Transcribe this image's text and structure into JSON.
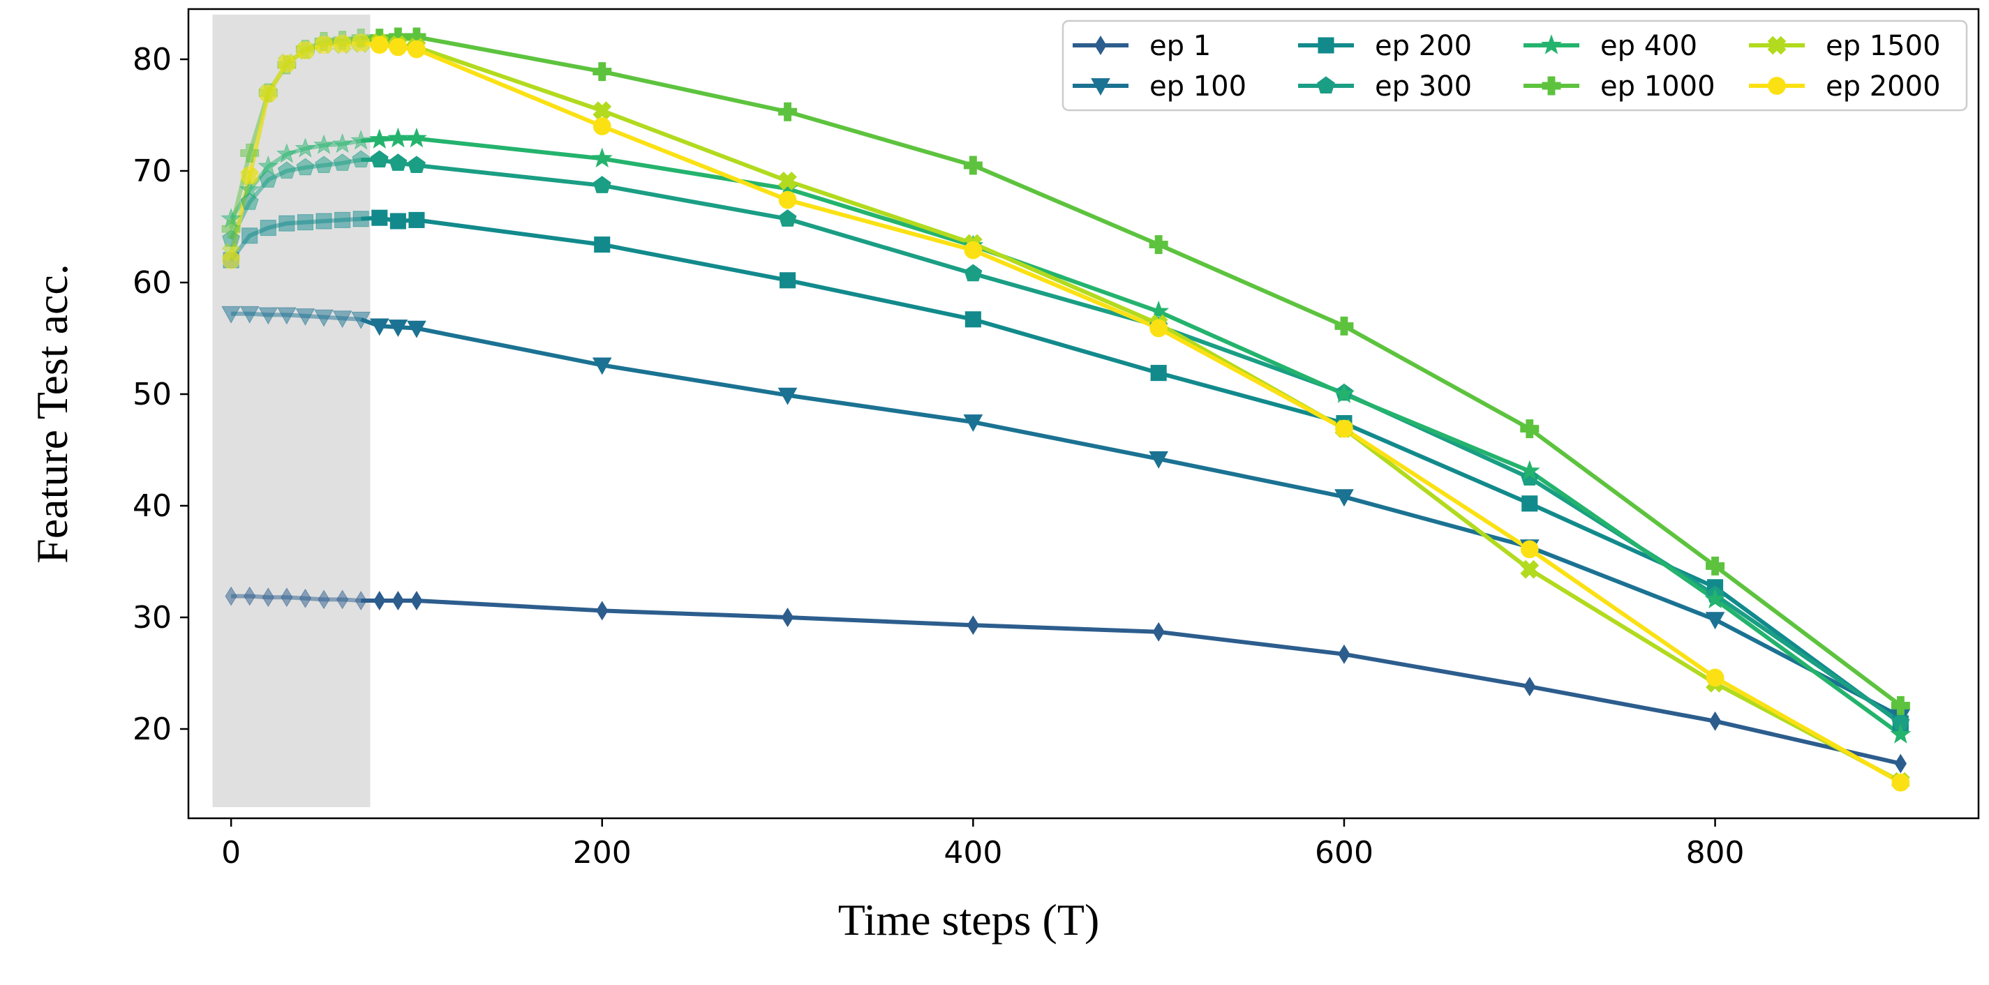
{
  "chart_data": {
    "type": "line",
    "xlabel": "Time steps (T)",
    "ylabel": "Feature Test acc.",
    "xlim": [
      -23,
      942
    ],
    "ylim": [
      12,
      84.5
    ],
    "xticks": [
      0,
      200,
      400,
      600,
      800
    ],
    "yticks": [
      20,
      30,
      40,
      50,
      60,
      70,
      80
    ],
    "grid": false,
    "legend_position": "top-right",
    "legend_columns": 4,
    "highlight_region": {
      "x": [
        -10,
        75
      ],
      "y": [
        13,
        84
      ],
      "color": "#e0e0e0"
    },
    "x": [
      0,
      10,
      20,
      30,
      40,
      50,
      60,
      70,
      80,
      90,
      100,
      200,
      300,
      400,
      500,
      600,
      700,
      800,
      900
    ],
    "series": [
      {
        "name": "ep 1",
        "color": "#2c5d8d",
        "marker": "thin_diamond",
        "values": [
          31.9,
          31.9,
          31.8,
          31.8,
          31.7,
          31.6,
          31.6,
          31.5,
          31.5,
          31.5,
          31.5,
          30.6,
          30.0,
          29.3,
          28.7,
          26.7,
          23.8,
          20.7,
          16.9
        ]
      },
      {
        "name": "ep 100",
        "color": "#1b7292",
        "marker": "triangle_down",
        "values": [
          57.2,
          57.2,
          57.1,
          57.1,
          57.0,
          56.9,
          56.8,
          56.7,
          56.1,
          56.0,
          55.9,
          52.6,
          49.9,
          47.5,
          44.2,
          40.8,
          36.3,
          29.8,
          21.1
        ]
      },
      {
        "name": "ep 200",
        "color": "#128a8c",
        "marker": "square",
        "values": [
          62.0,
          64.2,
          64.9,
          65.3,
          65.4,
          65.5,
          65.6,
          65.7,
          65.8,
          65.5,
          65.6,
          63.4,
          60.2,
          56.7,
          51.9,
          47.4,
          40.2,
          32.7,
          20.5
        ]
      },
      {
        "name": "ep 300",
        "color": "#1a9e84",
        "marker": "pentagon",
        "values": [
          63.9,
          67.2,
          69.2,
          70.0,
          70.3,
          70.5,
          70.7,
          71.0,
          71.0,
          70.7,
          70.5,
          68.7,
          65.7,
          60.8,
          56.1,
          50.1,
          42.5,
          32.0,
          20.6
        ]
      },
      {
        "name": "ep 400",
        "color": "#24b36d",
        "marker": "star",
        "values": [
          65.7,
          68.3,
          70.4,
          71.5,
          72.0,
          72.3,
          72.4,
          72.7,
          72.8,
          72.9,
          72.9,
          71.1,
          68.4,
          63.3,
          57.4,
          50.0,
          43.1,
          31.6,
          19.5
        ]
      },
      {
        "name": "ep 1000",
        "color": "#5dc33e",
        "marker": "plus_filled",
        "values": [
          64.8,
          71.6,
          77.0,
          79.5,
          80.9,
          81.6,
          81.7,
          81.9,
          81.9,
          82.0,
          82.0,
          78.9,
          75.3,
          70.5,
          63.4,
          56.1,
          46.9,
          34.6,
          22.1
        ]
      },
      {
        "name": "ep 1500",
        "color": "#b2da1e",
        "marker": "x_filled",
        "values": [
          62.7,
          69.5,
          77.0,
          79.7,
          80.8,
          81.3,
          81.3,
          81.4,
          81.5,
          81.3,
          81.1,
          75.4,
          69.1,
          63.5,
          56.3,
          46.9,
          34.3,
          24.1,
          15.3
        ]
      },
      {
        "name": "ep 2000",
        "color": "#fbe114",
        "marker": "circle",
        "values": [
          62.0,
          69.6,
          76.9,
          79.6,
          80.8,
          81.3,
          81.4,
          81.5,
          81.3,
          81.1,
          80.9,
          74.0,
          67.4,
          62.9,
          55.9,
          46.9,
          36.1,
          24.6,
          15.2
        ]
      }
    ]
  }
}
